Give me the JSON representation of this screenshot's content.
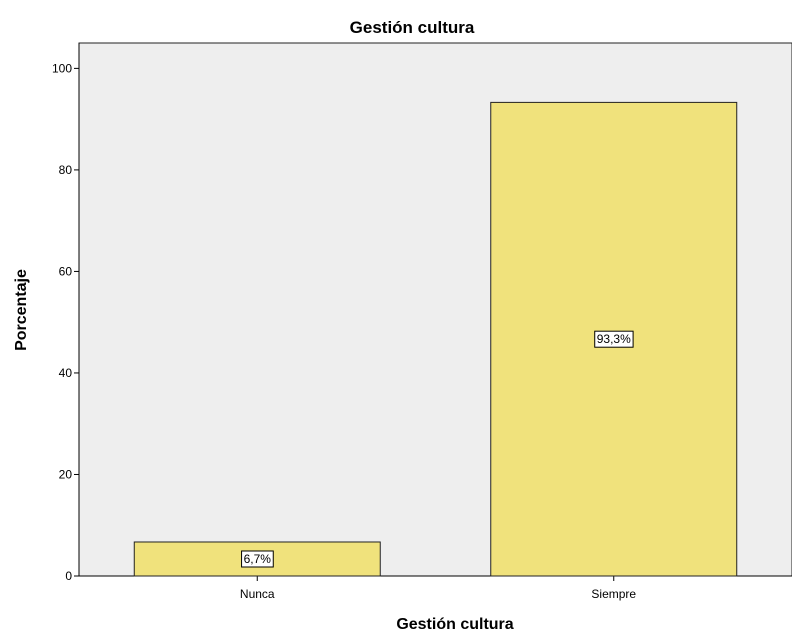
{
  "chart_data": {
    "type": "bar",
    "title": "Gestión cultura",
    "xlabel": "Gestión cultura",
    "ylabel": "Porcentaje",
    "categories": [
      "Nunca",
      "Siempre"
    ],
    "values": [
      6.7,
      93.3
    ],
    "data_labels": [
      "6,7%",
      "93,3%"
    ],
    "ylim": [
      0,
      105
    ],
    "yticks": [
      0,
      20,
      40,
      60,
      80,
      100
    ],
    "grid": false,
    "colors": {
      "bar_fill": "#F0E27C",
      "bar_stroke": "#222222",
      "plot_background": "#EEEEEE"
    }
  }
}
